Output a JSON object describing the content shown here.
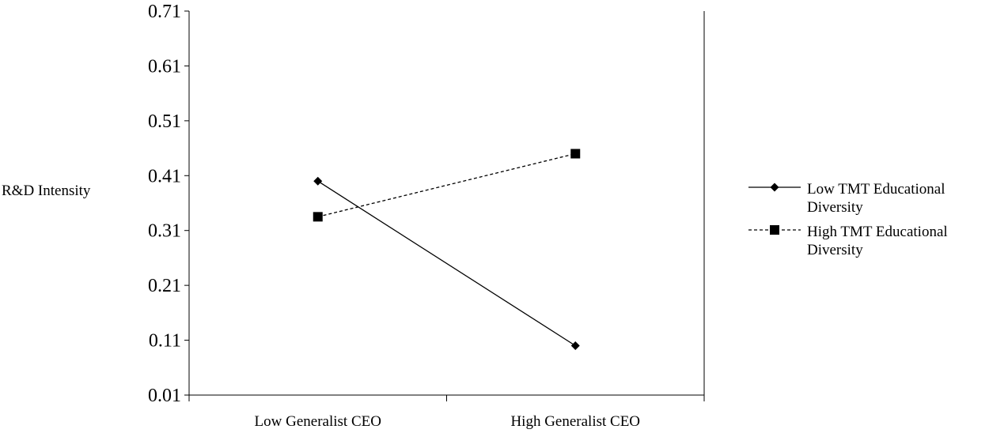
{
  "chart_data": {
    "type": "line",
    "title": "",
    "xlabel": "",
    "ylabel": "R&D Intensity",
    "categories": [
      "Low Generalist CEO",
      "High Generalist CEO"
    ],
    "yticks": [
      "0.01",
      "0.11",
      "0.21",
      "0.31",
      "0.41",
      "0.51",
      "0.61",
      "0.71"
    ],
    "ylim": [
      0.01,
      0.71
    ],
    "grid": false,
    "legend_position": "right",
    "series": [
      {
        "name": "Low TMT Educational Diversity",
        "name_lines": [
          "Low TMT Educational",
          "Diversity"
        ],
        "values": [
          0.4,
          0.1
        ],
        "marker": "diamond",
        "dash": "solid",
        "color": "#000000"
      },
      {
        "name": "High TMT Educational Diversity",
        "name_lines": [
          "High TMT Educational",
          "Diversity"
        ],
        "values": [
          0.335,
          0.45
        ],
        "marker": "square",
        "dash": "dashed",
        "color": "#000000"
      }
    ]
  }
}
